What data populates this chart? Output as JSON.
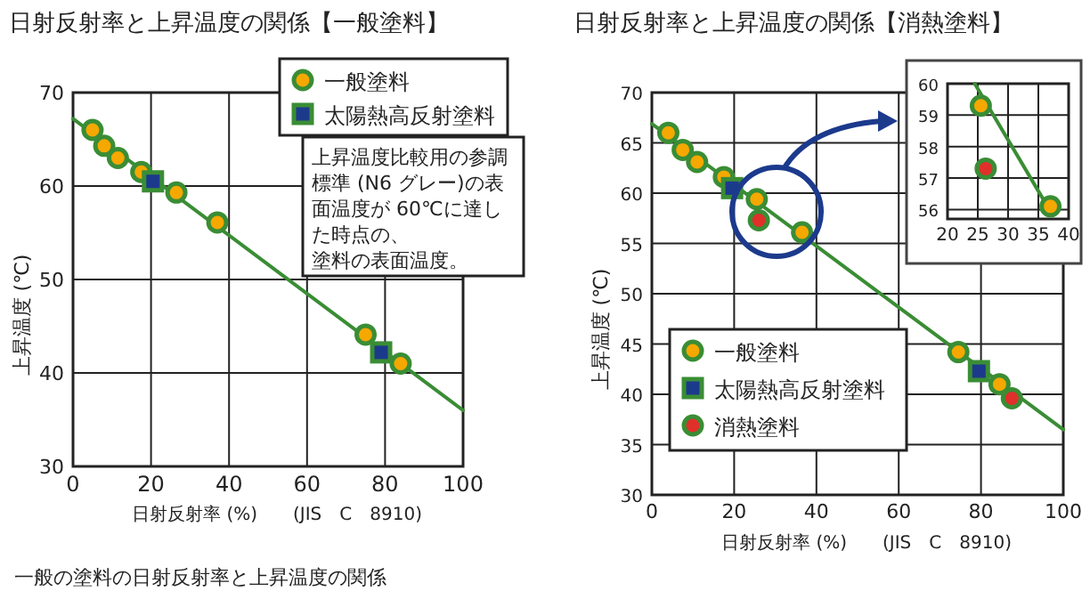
{
  "chart_data": [
    {
      "type": "scatter",
      "title": "日射反射率と上昇温度の関係【一般塗料】",
      "xlabel": "日射反射率 (%)　　(JIS　C　8910)",
      "ylabel": "上昇温度 (℃)",
      "xlim": [
        0,
        100
      ],
      "ylim": [
        30,
        70
      ],
      "xticks": [
        0,
        20,
        40,
        60,
        80,
        100
      ],
      "yticks": [
        30,
        40,
        50,
        60,
        70
      ],
      "grid": true,
      "legend": "top right",
      "series": [
        {
          "type": "line",
          "color": "#3a8d35",
          "marker": "none",
          "x": [
            0,
            100
          ],
          "values": [
            67.2,
            36
          ]
        },
        {
          "name": "一般塗料",
          "color": "#f5a800",
          "marker": "circle",
          "x": [
            5,
            8,
            11.5,
            17.5,
            26.5,
            37,
            75,
            84
          ],
          "values": [
            66,
            64.3,
            63,
            61.5,
            59.3,
            56.1,
            44.1,
            41
          ]
        },
        {
          "name": "太陽熱高反射塗料",
          "color": "#1c3a8c",
          "marker": "square",
          "x": [
            20.5,
            79
          ],
          "values": [
            60.5,
            42.2
          ]
        }
      ],
      "annotations": [
        "上昇温度比較用の参調標準 (N6 グレー)の表面温度が 60℃に達した時点の、塗料の表面温度。",
        "一般の塗料の日射反射率と上昇温度の関係"
      ]
    },
    {
      "type": "scatter",
      "title": "日射反射率と上昇温度の関係【消熱塗料】",
      "xlabel": "日射反射率 (%)　　(JIS　C　8910)",
      "ylabel": "上昇温度 (℃)",
      "xlim": [
        0,
        100
      ],
      "ylim": [
        30,
        70
      ],
      "xticks": [
        0,
        20,
        40,
        60,
        80,
        100
      ],
      "yticks": [
        30,
        35,
        40,
        45,
        50,
        55,
        60,
        65,
        70
      ],
      "grid": true,
      "legend": "bottom left",
      "series": [
        {
          "type": "line",
          "color": "#3a8d35",
          "marker": "none",
          "x": [
            0,
            100
          ],
          "values": [
            66.9,
            36.5
          ]
        },
        {
          "name": "一般塗料",
          "color": "#f5a800",
          "marker": "circle",
          "x": [
            4,
            7.5,
            11,
            17.5,
            25.5,
            36.5,
            74.5,
            84.5
          ],
          "values": [
            66,
            64.3,
            63.1,
            61.6,
            59.4,
            56.1,
            44.2,
            41
          ]
        },
        {
          "name": "太陽熱高反射塗料",
          "color": "#1c3a8c",
          "marker": "square",
          "x": [
            19.5,
            79.5
          ],
          "values": [
            60.5,
            42.3
          ]
        },
        {
          "name": "消熱塗料",
          "color": "#e0302a",
          "marker": "circle",
          "x": [
            26,
            87.5
          ],
          "values": [
            57.3,
            39.6
          ]
        }
      ]
    },
    {
      "type": "scatter",
      "xlim": [
        20,
        40
      ],
      "ylim": [
        55.7,
        60
      ],
      "xticks": [
        20,
        25,
        30,
        35,
        40
      ],
      "yticks": [
        56,
        57,
        58,
        59,
        60
      ],
      "grid": true,
      "series": [
        {
          "type": "line",
          "color": "#3a8d35",
          "marker": "none",
          "x": [
            24.5,
            36.5
          ],
          "values": [
            60,
            56.1
          ]
        },
        {
          "color": "#f5a800",
          "marker": "circle",
          "x": [
            25.5,
            37
          ],
          "values": [
            59.3,
            56.1
          ]
        },
        {
          "color": "#e0302a",
          "marker": "circle",
          "x": [
            26.3
          ],
          "values": [
            57.3
          ]
        }
      ]
    }
  ]
}
